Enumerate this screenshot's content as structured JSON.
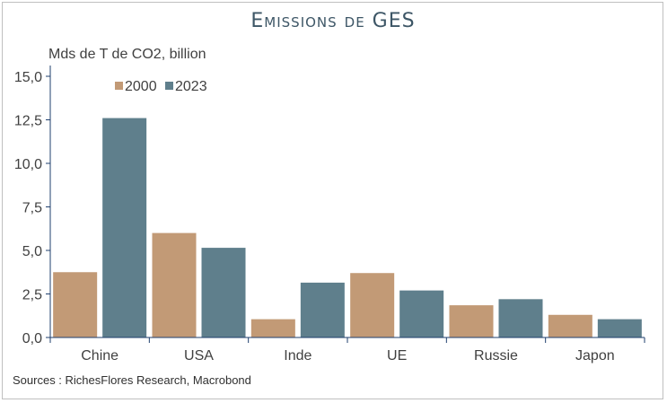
{
  "chart_data": {
    "type": "bar",
    "title": "Emissions de GES",
    "ylabel": "Mds de T de CO2, billion",
    "categories": [
      "Chine",
      "USA",
      "Inde",
      "UE",
      "Russie",
      "Japon"
    ],
    "series": [
      {
        "name": "2000",
        "values": [
          3.75,
          6.0,
          1.05,
          3.7,
          1.85,
          1.3
        ],
        "color": "#c29a76"
      },
      {
        "name": "2023",
        "values": [
          12.6,
          5.15,
          3.15,
          2.7,
          2.2,
          1.05
        ],
        "color": "#5f7f8c"
      }
    ],
    "ylim": [
      0,
      15
    ],
    "yticks": [
      "0,0",
      "2,5",
      "5,0",
      "7,5",
      "10,0",
      "12,5",
      "15,0"
    ],
    "grid": false,
    "legend": "top-left",
    "source": "Sources : RichesFlores Research, Macrobond"
  }
}
